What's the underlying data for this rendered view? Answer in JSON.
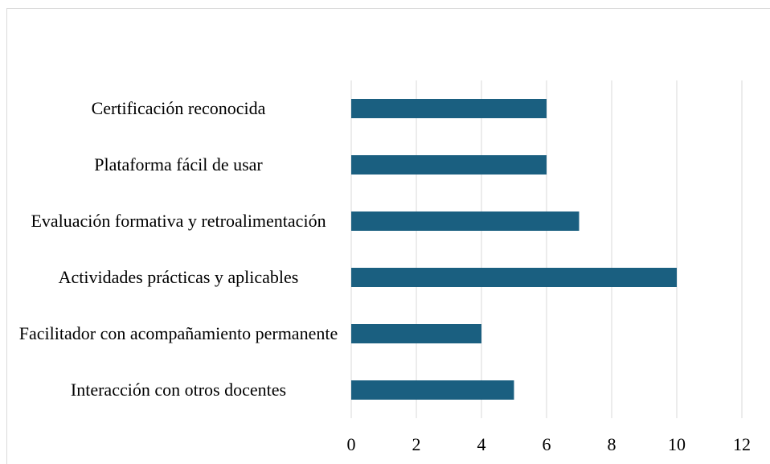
{
  "chart_data": {
    "type": "hbar",
    "categories": [
      "Certificación reconocida",
      "Plataforma fácil de usar",
      "Evaluación formativa y retroalimentación",
      "Actividades prácticas y aplicables",
      "Facilitador con acompañamiento permanente",
      "Interacción con otros docentes"
    ],
    "values": [
      6,
      6,
      7,
      10,
      4,
      5
    ],
    "color": "#1a5f80",
    "xlim": [
      0,
      12
    ],
    "xticks": [
      0,
      2,
      4,
      6,
      8,
      10,
      12
    ],
    "grid": true
  }
}
